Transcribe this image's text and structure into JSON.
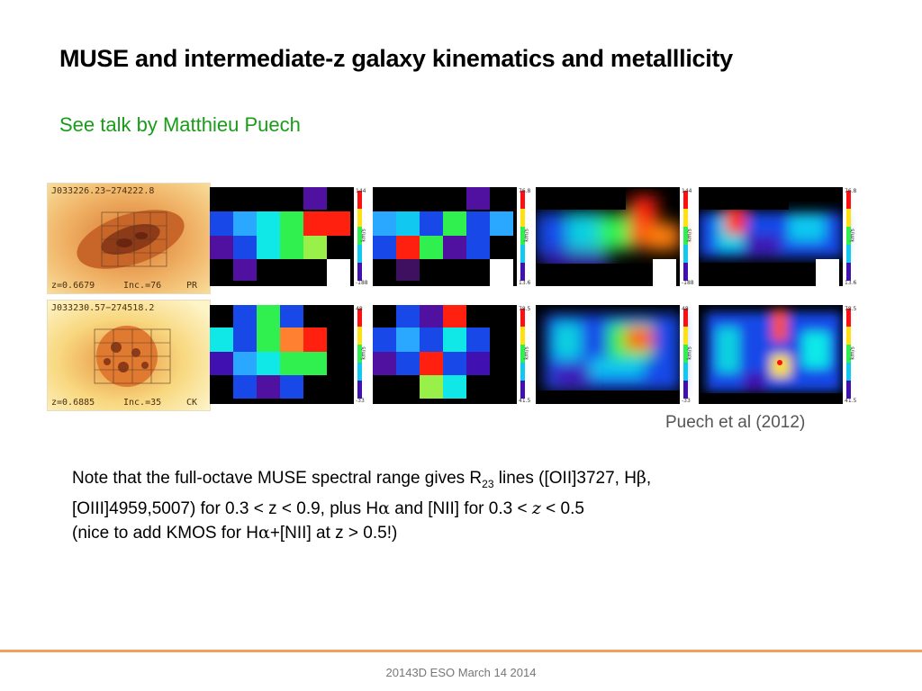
{
  "slide": {
    "title": "MUSE and intermediate-z galaxy kinematics and metalllicity",
    "subtitle": "See talk by Matthieu Puech"
  },
  "figure": {
    "rows": [
      {
        "galaxy": {
          "id": "J033226.23−274222.8",
          "z": "z=0.6679",
          "inc": "Inc.=76",
          "code": "PR"
        },
        "maps": [
          {
            "top": "144",
            "bottom": "-188",
            "unit": "km/s"
          },
          {
            "top": "76.8",
            "bottom": "13.6",
            "unit": "km/s"
          },
          {
            "top": "144",
            "bottom": "-188",
            "unit": "km/s"
          },
          {
            "top": "76.8",
            "bottom": "13.6",
            "unit": "km/s"
          }
        ]
      },
      {
        "galaxy": {
          "id": "J033230.57−274518.2",
          "z": "z=0.6885",
          "inc": "Inc.=35",
          "code": "CK"
        },
        "maps": [
          {
            "top": "48",
            "bottom": "-33",
            "unit": "km/s"
          },
          {
            "top": "78.5",
            "bottom": "41.5",
            "unit": "km/s"
          },
          {
            "top": "48",
            "bottom": "-33",
            "unit": "km/s"
          },
          {
            "top": "78.5",
            "bottom": "41.5",
            "unit": "km/s"
          }
        ]
      }
    ]
  },
  "citation": "Puech et al (2012)",
  "note": {
    "l1_a": "Note that the full-octave MUSE spectral range gives R",
    "l1_sub": "23",
    "l1_b": " lines ([OII]3727, H",
    "beta": "β",
    "l1_c": ",",
    "l2_a": "[OIII]4959,5007) for 0.3 < z < 0.9, plus H",
    "alpha": "α",
    "l2_b": " and [NII] for 0.3 < ",
    "z_italic": "z",
    "l2_c": " < 0.5",
    "l3_a": "(nice to add KMOS for H",
    "l3_b": "+[NII] at z > 0.5!)"
  },
  "footer": "20143D ESO March 14 2014",
  "colors": {
    "title": "#000000",
    "subtitle": "#1a9b1a",
    "citation": "#555555",
    "divider": "#f0a060",
    "footer": "#777777"
  }
}
